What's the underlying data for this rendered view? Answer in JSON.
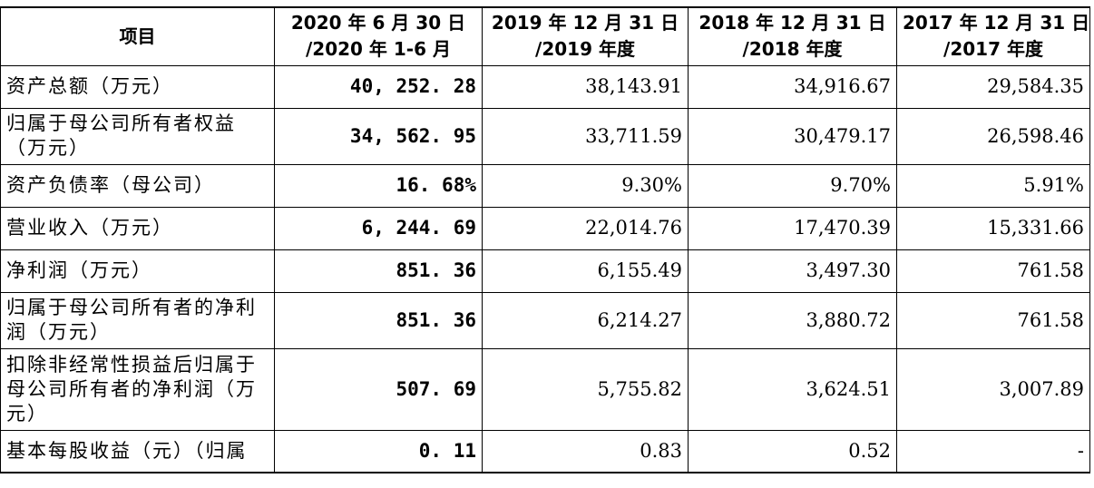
{
  "header": {
    "item": "项目",
    "col1": [
      "2020 年 6 月 30 日",
      "/2020 年 1-6 月"
    ],
    "col2": [
      "2019 年 12 月 31 日",
      "/2019 年度"
    ],
    "col3": [
      "2018 年 12 月 31 日",
      "/2018 年度"
    ],
    "col4": [
      "2017 年 12 月 31 日",
      "/2017 年度"
    ]
  },
  "rows": [
    {
      "label": "资产总额（万元）",
      "v2020": "40, 252. 28",
      "v2019": "38,143.91",
      "v2018": "34,916.67",
      "v2017": "29,584.35"
    },
    {
      "label": "归属于母公司所有者权益（万元）",
      "v2020": "34, 562. 95",
      "v2019": "33,711.59",
      "v2018": "30,479.17",
      "v2017": "26,598.46"
    },
    {
      "label": "资产负债率（母公司）",
      "v2020": "16. 68%",
      "v2019": "9.30%",
      "v2018": "9.70%",
      "v2017": "5.91%"
    },
    {
      "label": "营业收入（万元）",
      "v2020": "6, 244. 69",
      "v2019": "22,014.76",
      "v2018": "17,470.39",
      "v2017": "15,331.66"
    },
    {
      "label": "净利润（万元）",
      "v2020": "851. 36",
      "v2019": "6,155.49",
      "v2018": "3,497.30",
      "v2017": "761.58"
    },
    {
      "label": "归属于母公司所有者的净利润（万元）",
      "v2020": "851. 36",
      "v2019": "6,214.27",
      "v2018": "3,880.72",
      "v2017": "761.58"
    },
    {
      "label": "扣除非经常性损益后归属于母公司所有者的净利润（万元）",
      "v2020": "507. 69",
      "v2019": "5,755.82",
      "v2018": "3,624.51",
      "v2017": "3,007.89"
    },
    {
      "label": "基本每股收益（元）（归属",
      "v2020": "0. 11",
      "v2019": "0.83",
      "v2018": "0.52",
      "v2017": "-"
    }
  ]
}
